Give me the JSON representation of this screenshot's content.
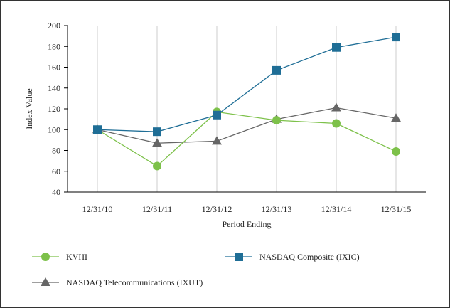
{
  "chart_data": {
    "type": "line",
    "title": "",
    "xlabel": "Period Ending",
    "ylabel": "Index Value",
    "ylim": [
      40,
      200
    ],
    "yticks": [
      40,
      60,
      80,
      100,
      120,
      140,
      160,
      180,
      200
    ],
    "categories": [
      "12/31/10",
      "12/31/11",
      "12/31/12",
      "12/31/13",
      "12/31/14",
      "12/31/15"
    ],
    "grid": "vertical",
    "legend_position": "bottom",
    "series": [
      {
        "name": "KVHI",
        "color": "#7dc14a",
        "marker": "circle",
        "values": [
          100,
          65,
          117,
          109,
          106,
          79
        ]
      },
      {
        "name": "NASDAQ Composite (IXIC)",
        "color": "#1f6e96",
        "marker": "square",
        "values": [
          100,
          98,
          114,
          157,
          179,
          189
        ]
      },
      {
        "name": "NASDAQ Telecommunications (IXUT)",
        "color": "#666666",
        "marker": "triangle",
        "values": [
          100,
          87,
          89,
          110,
          121,
          111
        ]
      }
    ]
  }
}
